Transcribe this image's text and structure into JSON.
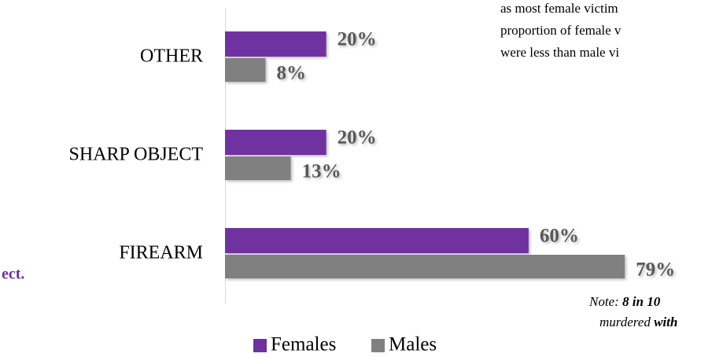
{
  "chart_data": {
    "type": "hbar",
    "categories": [
      "OTHER",
      "SHARP OBJECT",
      "FIREARM"
    ],
    "series": [
      {
        "name": "Females",
        "color": "#7030a0",
        "values": [
          20,
          20,
          60
        ],
        "value_labels": [
          "20%",
          "20%",
          "60%"
        ]
      },
      {
        "name": "Males",
        "color": "#808080",
        "values": [
          8,
          13,
          79
        ],
        "value_labels": [
          "8%",
          "13%",
          "79%"
        ]
      }
    ],
    "xlim": [
      0,
      80
    ],
    "annotations": {
      "top_text": [
        "as most female victim",
        "proportion of female v",
        "were less than male vi"
      ],
      "left_text": "ect.",
      "note": [
        [
          "Note: ",
          "8 in 10 "
        ],
        [
          "murdered ",
          "with"
        ]
      ]
    }
  }
}
